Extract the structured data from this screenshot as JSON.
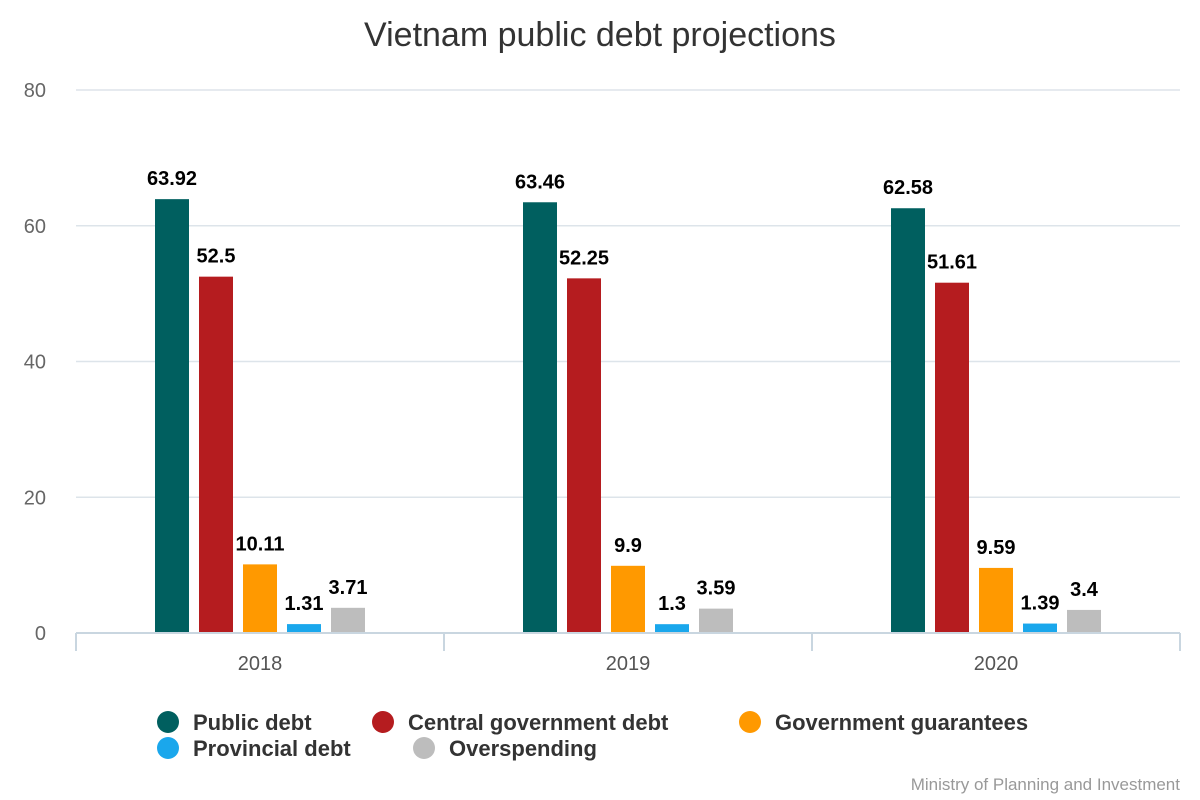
{
  "chart_data": {
    "type": "bar",
    "title": "Vietnam public debt projections",
    "categories": [
      "2018",
      "2019",
      "2020"
    ],
    "series": [
      {
        "name": "Public debt",
        "color": "#005f5f",
        "values": [
          63.92,
          63.46,
          62.58
        ]
      },
      {
        "name": "Central government debt",
        "color": "#b51c1f",
        "values": [
          52.5,
          52.25,
          51.61
        ]
      },
      {
        "name": "Government guarantees",
        "color": "#ff9900",
        "values": [
          10.11,
          9.9,
          9.59
        ]
      },
      {
        "name": "Provincial debt",
        "color": "#1aa7ec",
        "values": [
          1.31,
          1.3,
          1.39
        ]
      },
      {
        "name": "Overspending",
        "color": "#bdbdbd",
        "values": [
          3.71,
          3.59,
          3.4
        ]
      }
    ],
    "yticks": [
      0,
      20,
      40,
      60,
      80
    ],
    "ylim": [
      0,
      80
    ],
    "grid": true,
    "legend_position": "bottom"
  },
  "source": "Ministry of Planning and Investment"
}
